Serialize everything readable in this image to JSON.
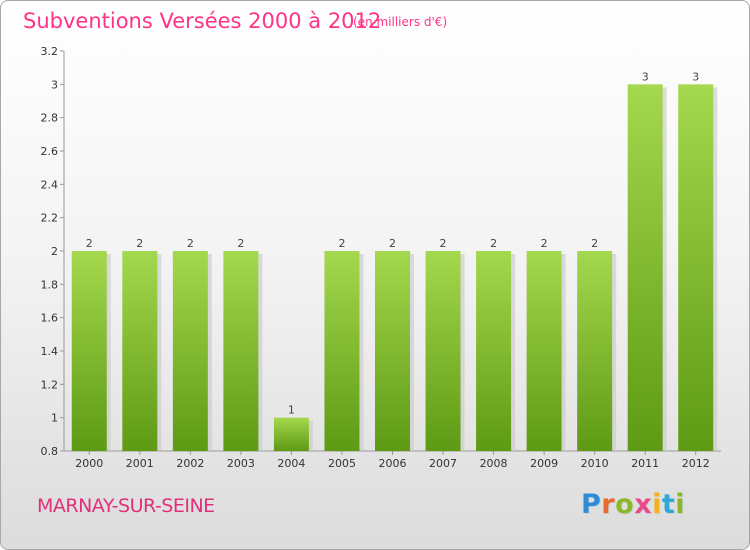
{
  "title": "Subventions Versées 2000 à 2012",
  "subtitle": "(en milliers d'€)",
  "commune": "MARNAY-SUR-SEINE",
  "logo": {
    "letters": [
      "P",
      "r",
      "o",
      "x",
      "i",
      "t",
      "i"
    ],
    "colors": [
      "#2e8bd6",
      "#e86a2a",
      "#8ab82a",
      "#e84a8a",
      "#f0b020",
      "#2ea8d6",
      "#8ab82a"
    ]
  },
  "colors": {
    "bar_light": "#a4d84e",
    "bar_dark": "#5e9a14",
    "accent": "#ff3386"
  },
  "chart_data": {
    "type": "bar",
    "categories": [
      "2000",
      "2001",
      "2002",
      "2003",
      "2004",
      "2005",
      "2006",
      "2007",
      "2008",
      "2009",
      "2010",
      "2011",
      "2012"
    ],
    "values": [
      2,
      2,
      2,
      2,
      1,
      2,
      2,
      2,
      2,
      2,
      2,
      3,
      3
    ],
    "data_labels": [
      "2",
      "2",
      "2",
      "2",
      "1",
      "2",
      "2",
      "2",
      "2",
      "2",
      "2",
      "3",
      "3"
    ],
    "yticks": [
      "0.8",
      "1",
      "1.2",
      "1.4",
      "1.6",
      "1.8",
      "2",
      "2.2",
      "2.4",
      "2.6",
      "2.8",
      "3",
      "3.2"
    ],
    "ylim": [
      0.8,
      3.2
    ],
    "grid": false
  }
}
